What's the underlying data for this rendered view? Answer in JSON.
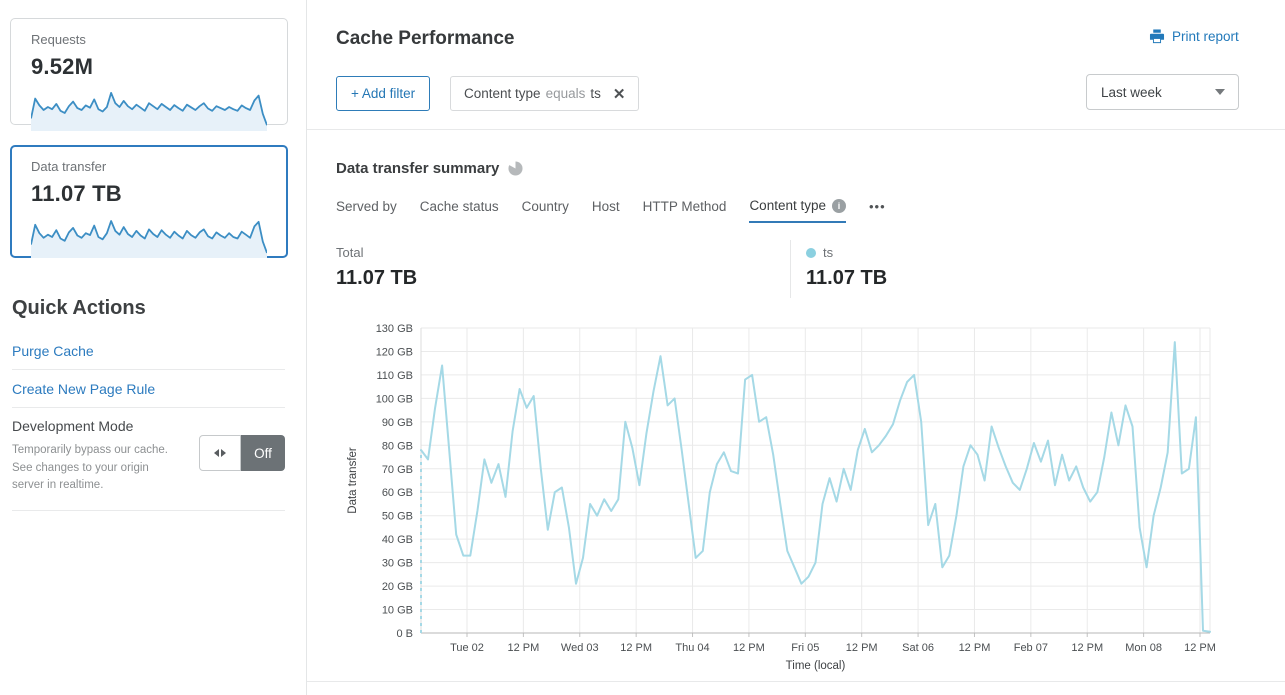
{
  "colors": {
    "accent_blue": "#2c7bbf",
    "spark_stroke": "#3c8ec4",
    "spark_fill": "#e7f1f9",
    "grid": "#eaeaea",
    "axis_line": "#b7b7b7",
    "axis_text": "#4b4f52"
  },
  "sidebar": {
    "cards": [
      {
        "label": "Requests",
        "value": "9.52M",
        "spark": [
          28,
          80,
          62,
          50,
          58,
          52,
          66,
          48,
          42,
          60,
          72,
          55,
          50,
          62,
          56,
          78,
          52,
          46,
          58,
          95,
          68,
          58,
          74,
          60,
          52,
          64,
          56,
          48,
          68,
          60,
          52,
          66,
          58,
          50,
          63,
          55,
          48,
          64,
          57,
          50,
          60,
          68,
          54,
          48,
          60,
          55,
          50,
          58,
          52,
          48,
          62,
          55,
          50,
          75,
          88,
          40,
          10
        ]
      },
      {
        "label": "Data transfer",
        "value": "11.07 TB",
        "selected": true,
        "spark": [
          30,
          82,
          60,
          48,
          56,
          50,
          68,
          46,
          40,
          62,
          74,
          54,
          48,
          60,
          55,
          80,
          50,
          44,
          60,
          92,
          66,
          56,
          76,
          58,
          50,
          66,
          54,
          46,
          70,
          58,
          50,
          68,
          56,
          48,
          64,
          54,
          46,
          66,
          55,
          48,
          62,
          70,
          52,
          46,
          62,
          54,
          48,
          60,
          50,
          46,
          64,
          56,
          48,
          78,
          90,
          38,
          8
        ]
      }
    ],
    "quick_actions_title": "Quick Actions",
    "purge_cache_label": "Purge Cache",
    "create_page_rule_label": "Create New Page Rule",
    "dev_mode_title": "Development Mode",
    "dev_mode_description": "Temporarily bypass our cache. See changes to your origin server in realtime.",
    "dev_mode_toggle": "Off"
  },
  "header": {
    "title": "Cache Performance",
    "print_report": "Print report",
    "add_filter": "+ Add filter",
    "filter_chip": {
      "field": "Content type",
      "operator": "equals",
      "value": "ts",
      "close": "✕"
    },
    "time_range": "Last week"
  },
  "summary": {
    "title": "Data transfer summary",
    "tabs": [
      "Served by",
      "Cache status",
      "Country",
      "Host",
      "HTTP Method",
      "Content type"
    ],
    "active_tab": "Content type",
    "info_glyph": "i",
    "more": "•••",
    "total_label": "Total",
    "total_value": "11.07 TB",
    "legend": {
      "name": "ts",
      "value": "11.07 TB",
      "color": "#8bd0e0"
    }
  },
  "chart_data": {
    "type": "line",
    "title": "Data transfer summary",
    "xlabel": "Time (local)",
    "ylabel": "Data transfer",
    "unit": "GB",
    "ylim": [
      0,
      130
    ],
    "y_tick_step": 10,
    "y_ticks": [
      "130 GB",
      "120 GB",
      "110 GB",
      "100 GB",
      "90 GB",
      "80 GB",
      "70 GB",
      "60 GB",
      "50 GB",
      "40 GB",
      "30 GB",
      "20 GB",
      "10 GB",
      "0 B"
    ],
    "x_ticks": [
      "Tue 02",
      "12 PM",
      "Wed 03",
      "12 PM",
      "Thu 04",
      "12 PM",
      "Fri 05",
      "12 PM",
      "Sat 06",
      "12 PM",
      "Feb 07",
      "12 PM",
      "Mon 08",
      "12 PM"
    ],
    "line_color": "#a5d9e6",
    "grid_on": true,
    "leading_dashed_from_zero": true,
    "series": [
      {
        "name": "ts",
        "values": [
          78,
          74,
          96,
          114,
          78,
          42,
          33,
          33,
          52,
          74,
          64,
          72,
          58,
          86,
          104,
          96,
          101,
          70,
          44,
          60,
          62,
          45,
          21,
          32,
          55,
          50,
          57,
          52,
          57,
          90,
          79,
          63,
          85,
          103,
          118,
          97,
          100,
          78,
          55,
          32,
          35,
          60,
          72,
          77,
          69,
          68,
          108,
          110,
          90,
          92,
          76,
          55,
          35,
          28,
          21,
          24,
          30,
          55,
          66,
          56,
          70,
          61,
          78,
          87,
          77,
          80,
          84,
          89,
          99,
          107,
          110,
          90,
          46,
          55,
          28,
          33,
          50,
          71,
          80,
          76,
          65,
          88,
          79,
          71,
          64,
          61,
          70,
          81,
          73,
          82,
          63,
          76,
          65,
          71,
          62,
          56,
          60,
          75,
          94,
          80,
          97,
          88,
          45,
          28,
          50,
          62,
          77,
          124,
          68,
          70,
          92,
          1,
          0.5
        ]
      }
    ]
  }
}
